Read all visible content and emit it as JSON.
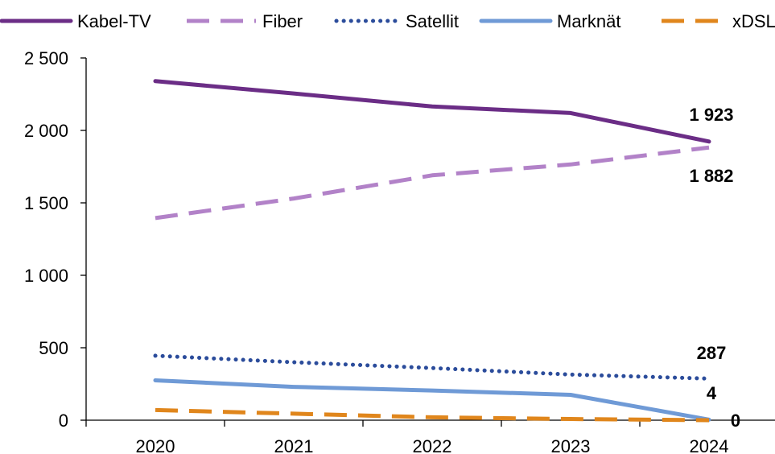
{
  "chart_data": {
    "type": "line",
    "title": "",
    "xlabel": "",
    "ylabel": "",
    "x": [
      "2020",
      "2021",
      "2022",
      "2023",
      "2024"
    ],
    "ylim": [
      0,
      2500
    ],
    "yticks": [
      0,
      500,
      1000,
      1500,
      2000,
      2500
    ],
    "ytick_labels": [
      "0",
      "500",
      "1 000",
      "1 500",
      "2 000",
      "2 500"
    ],
    "grid": false,
    "legend_position": "top",
    "series": [
      {
        "name": "Kabel-TV",
        "color": "#6b2d86",
        "style": "solid",
        "values": [
          2340,
          2255,
          2165,
          2120,
          1923
        ],
        "end_label": "1 923"
      },
      {
        "name": "Fiber",
        "color": "#b282c8",
        "style": "dashed",
        "values": [
          1395,
          1530,
          1690,
          1765,
          1882
        ],
        "end_label": "1 882"
      },
      {
        "name": "Satellit",
        "color": "#2b4c9b",
        "style": "dotted",
        "values": [
          445,
          400,
          360,
          315,
          287
        ],
        "end_label": "287"
      },
      {
        "name": "Marknät",
        "color": "#6f9ad6",
        "style": "solid",
        "values": [
          275,
          230,
          205,
          175,
          4
        ],
        "end_label": "4"
      },
      {
        "name": "xDSL",
        "color": "#e0861c",
        "style": "dashed",
        "values": [
          70,
          45,
          20,
          8,
          0
        ],
        "end_label": "0"
      }
    ]
  }
}
